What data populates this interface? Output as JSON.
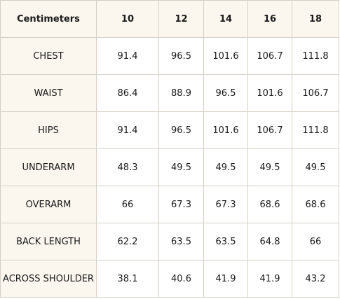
{
  "table": {
    "headers": [
      "Centimeters",
      "10",
      "12",
      "14",
      "16",
      "18"
    ],
    "rows": [
      {
        "label": "CHEST",
        "values": [
          "91.4",
          "96.5",
          "101.6",
          "106.7",
          "111.8"
        ]
      },
      {
        "label": "WAIST",
        "values": [
          "86.4",
          "88.9",
          "96.5",
          "101.6",
          "106.7"
        ]
      },
      {
        "label": "HIPS",
        "values": [
          "91.4",
          "96.5",
          "101.6",
          "106.7",
          "111.8"
        ]
      },
      {
        "label": "UNDERARM",
        "values": [
          "48.3",
          "49.5",
          "49.5",
          "49.5",
          "49.5"
        ]
      },
      {
        "label": "OVERARM",
        "values": [
          "66",
          "67.3",
          "67.3",
          "68.6",
          "68.6"
        ]
      },
      {
        "label": "BACK LENGTH",
        "values": [
          "62.2",
          "63.5",
          "63.5",
          "64.8",
          "66"
        ]
      },
      {
        "label": "ACROSS SHOULDER",
        "values": [
          "38.1",
          "40.6",
          "41.9",
          "41.9",
          "43.2"
        ]
      }
    ]
  },
  "colors": {
    "header_bg": "#fbf6ee",
    "border": "#d4cfc6",
    "cell_bg": "#ffffff"
  }
}
